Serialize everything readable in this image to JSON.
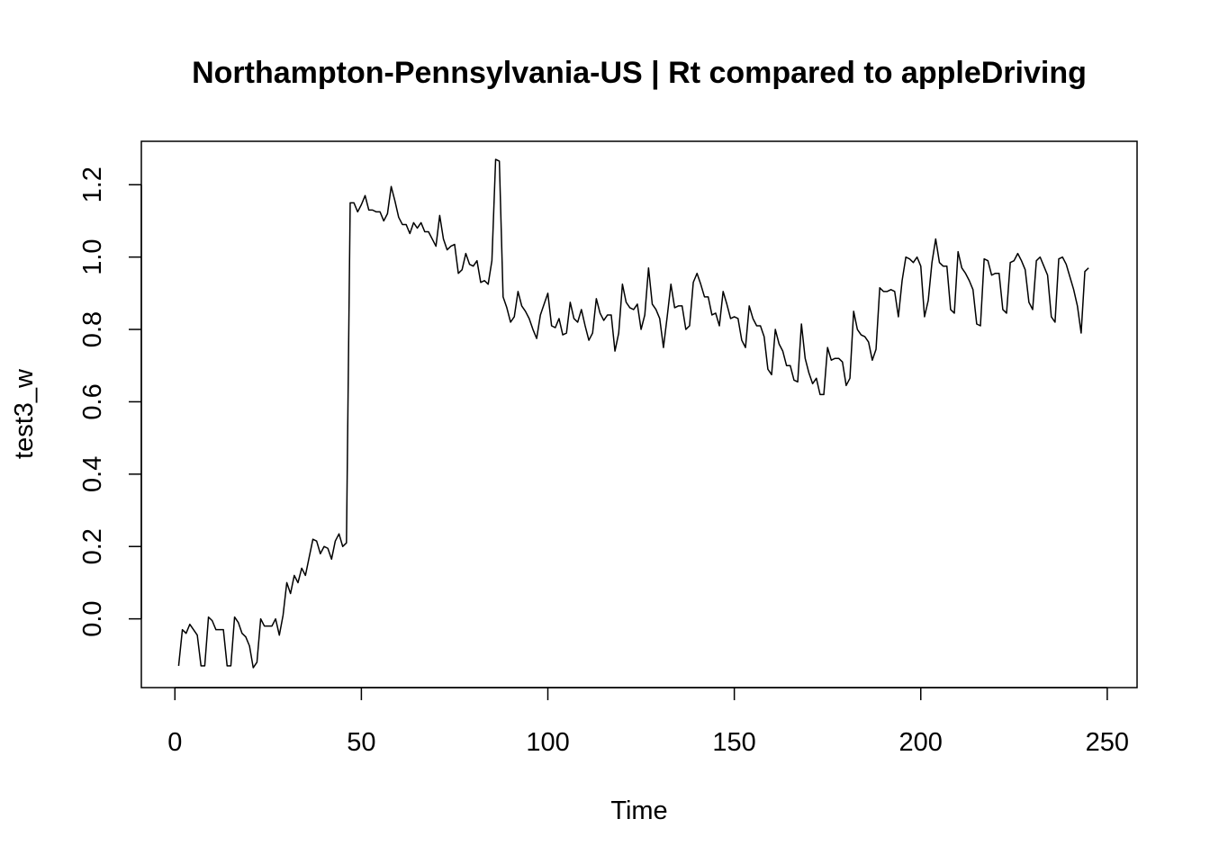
{
  "chart_data": {
    "type": "line",
    "title": "Northampton-Pennsylvania-US | Rt compared to appleDriving",
    "xlabel": "Time",
    "ylabel": "test3_w",
    "xlim": [
      -9,
      258
    ],
    "ylim": [
      -0.19,
      1.32
    ],
    "x_ticks": [
      0,
      50,
      100,
      150,
      200,
      250
    ],
    "y_ticks": [
      0.0,
      0.2,
      0.4,
      0.6,
      0.8,
      1.0,
      1.2
    ],
    "x_tick_labels": [
      "0",
      "50",
      "100",
      "150",
      "200",
      "250"
    ],
    "y_tick_labels": [
      "0.0",
      "0.2",
      "0.4",
      "0.6",
      "0.8",
      "1.0",
      "1.2"
    ],
    "grid": false,
    "x_start": 1,
    "series": [
      {
        "values": [
          -0.13,
          -0.03,
          -0.04,
          -0.015,
          -0.03,
          -0.045,
          -0.13,
          -0.13,
          0.005,
          -0.005,
          -0.03,
          -0.03,
          -0.03,
          -0.13,
          -0.13,
          0.005,
          -0.01,
          -0.04,
          -0.05,
          -0.075,
          -0.135,
          -0.12,
          0.0,
          -0.02,
          -0.02,
          -0.02,
          0.0,
          -0.045,
          0.01,
          0.1,
          0.07,
          0.12,
          0.1,
          0.14,
          0.12,
          0.17,
          0.22,
          0.215,
          0.18,
          0.2,
          0.195,
          0.165,
          0.215,
          0.235,
          0.2,
          0.21,
          1.15,
          1.15,
          1.125,
          1.145,
          1.17,
          1.13,
          1.13,
          1.125,
          1.125,
          1.1,
          1.12,
          1.195,
          1.155,
          1.11,
          1.09,
          1.09,
          1.065,
          1.095,
          1.08,
          1.095,
          1.07,
          1.07,
          1.05,
          1.03,
          1.115,
          1.05,
          1.02,
          1.03,
          1.035,
          0.955,
          0.965,
          1.01,
          0.98,
          0.975,
          0.99,
          0.93,
          0.935,
          0.925,
          0.99,
          1.27,
          1.265,
          0.89,
          0.86,
          0.82,
          0.835,
          0.905,
          0.865,
          0.85,
          0.83,
          0.8,
          0.775,
          0.84,
          0.87,
          0.9,
          0.81,
          0.805,
          0.83,
          0.785,
          0.79,
          0.875,
          0.83,
          0.82,
          0.855,
          0.81,
          0.77,
          0.79,
          0.885,
          0.845,
          0.825,
          0.84,
          0.84,
          0.74,
          0.79,
          0.925,
          0.875,
          0.86,
          0.855,
          0.87,
          0.8,
          0.84,
          0.97,
          0.87,
          0.855,
          0.83,
          0.75,
          0.835,
          0.925,
          0.86,
          0.865,
          0.865,
          0.8,
          0.81,
          0.93,
          0.955,
          0.925,
          0.89,
          0.89,
          0.84,
          0.845,
          0.81,
          0.905,
          0.87,
          0.83,
          0.835,
          0.83,
          0.77,
          0.75,
          0.865,
          0.83,
          0.81,
          0.81,
          0.78,
          0.69,
          0.675,
          0.8,
          0.76,
          0.74,
          0.7,
          0.7,
          0.66,
          0.655,
          0.815,
          0.72,
          0.68,
          0.65,
          0.665,
          0.62,
          0.62,
          0.75,
          0.715,
          0.72,
          0.72,
          0.71,
          0.645,
          0.665,
          0.85,
          0.8,
          0.785,
          0.78,
          0.765,
          0.715,
          0.745,
          0.915,
          0.905,
          0.905,
          0.91,
          0.905,
          0.835,
          0.935,
          1.0,
          0.995,
          0.985,
          1.0,
          0.975,
          0.835,
          0.88,
          0.985,
          1.05,
          0.985,
          0.975,
          0.975,
          0.855,
          0.845,
          1.015,
          0.97,
          0.955,
          0.935,
          0.91,
          0.815,
          0.81,
          0.995,
          0.99,
          0.95,
          0.955,
          0.955,
          0.855,
          0.845,
          0.985,
          0.99,
          1.01,
          0.99,
          0.965,
          0.875,
          0.855,
          0.99,
          1.0,
          0.975,
          0.95,
          0.835,
          0.82,
          0.995,
          1.0,
          0.98,
          0.945,
          0.91,
          0.865,
          0.79,
          0.96,
          0.97
        ]
      }
    ]
  }
}
